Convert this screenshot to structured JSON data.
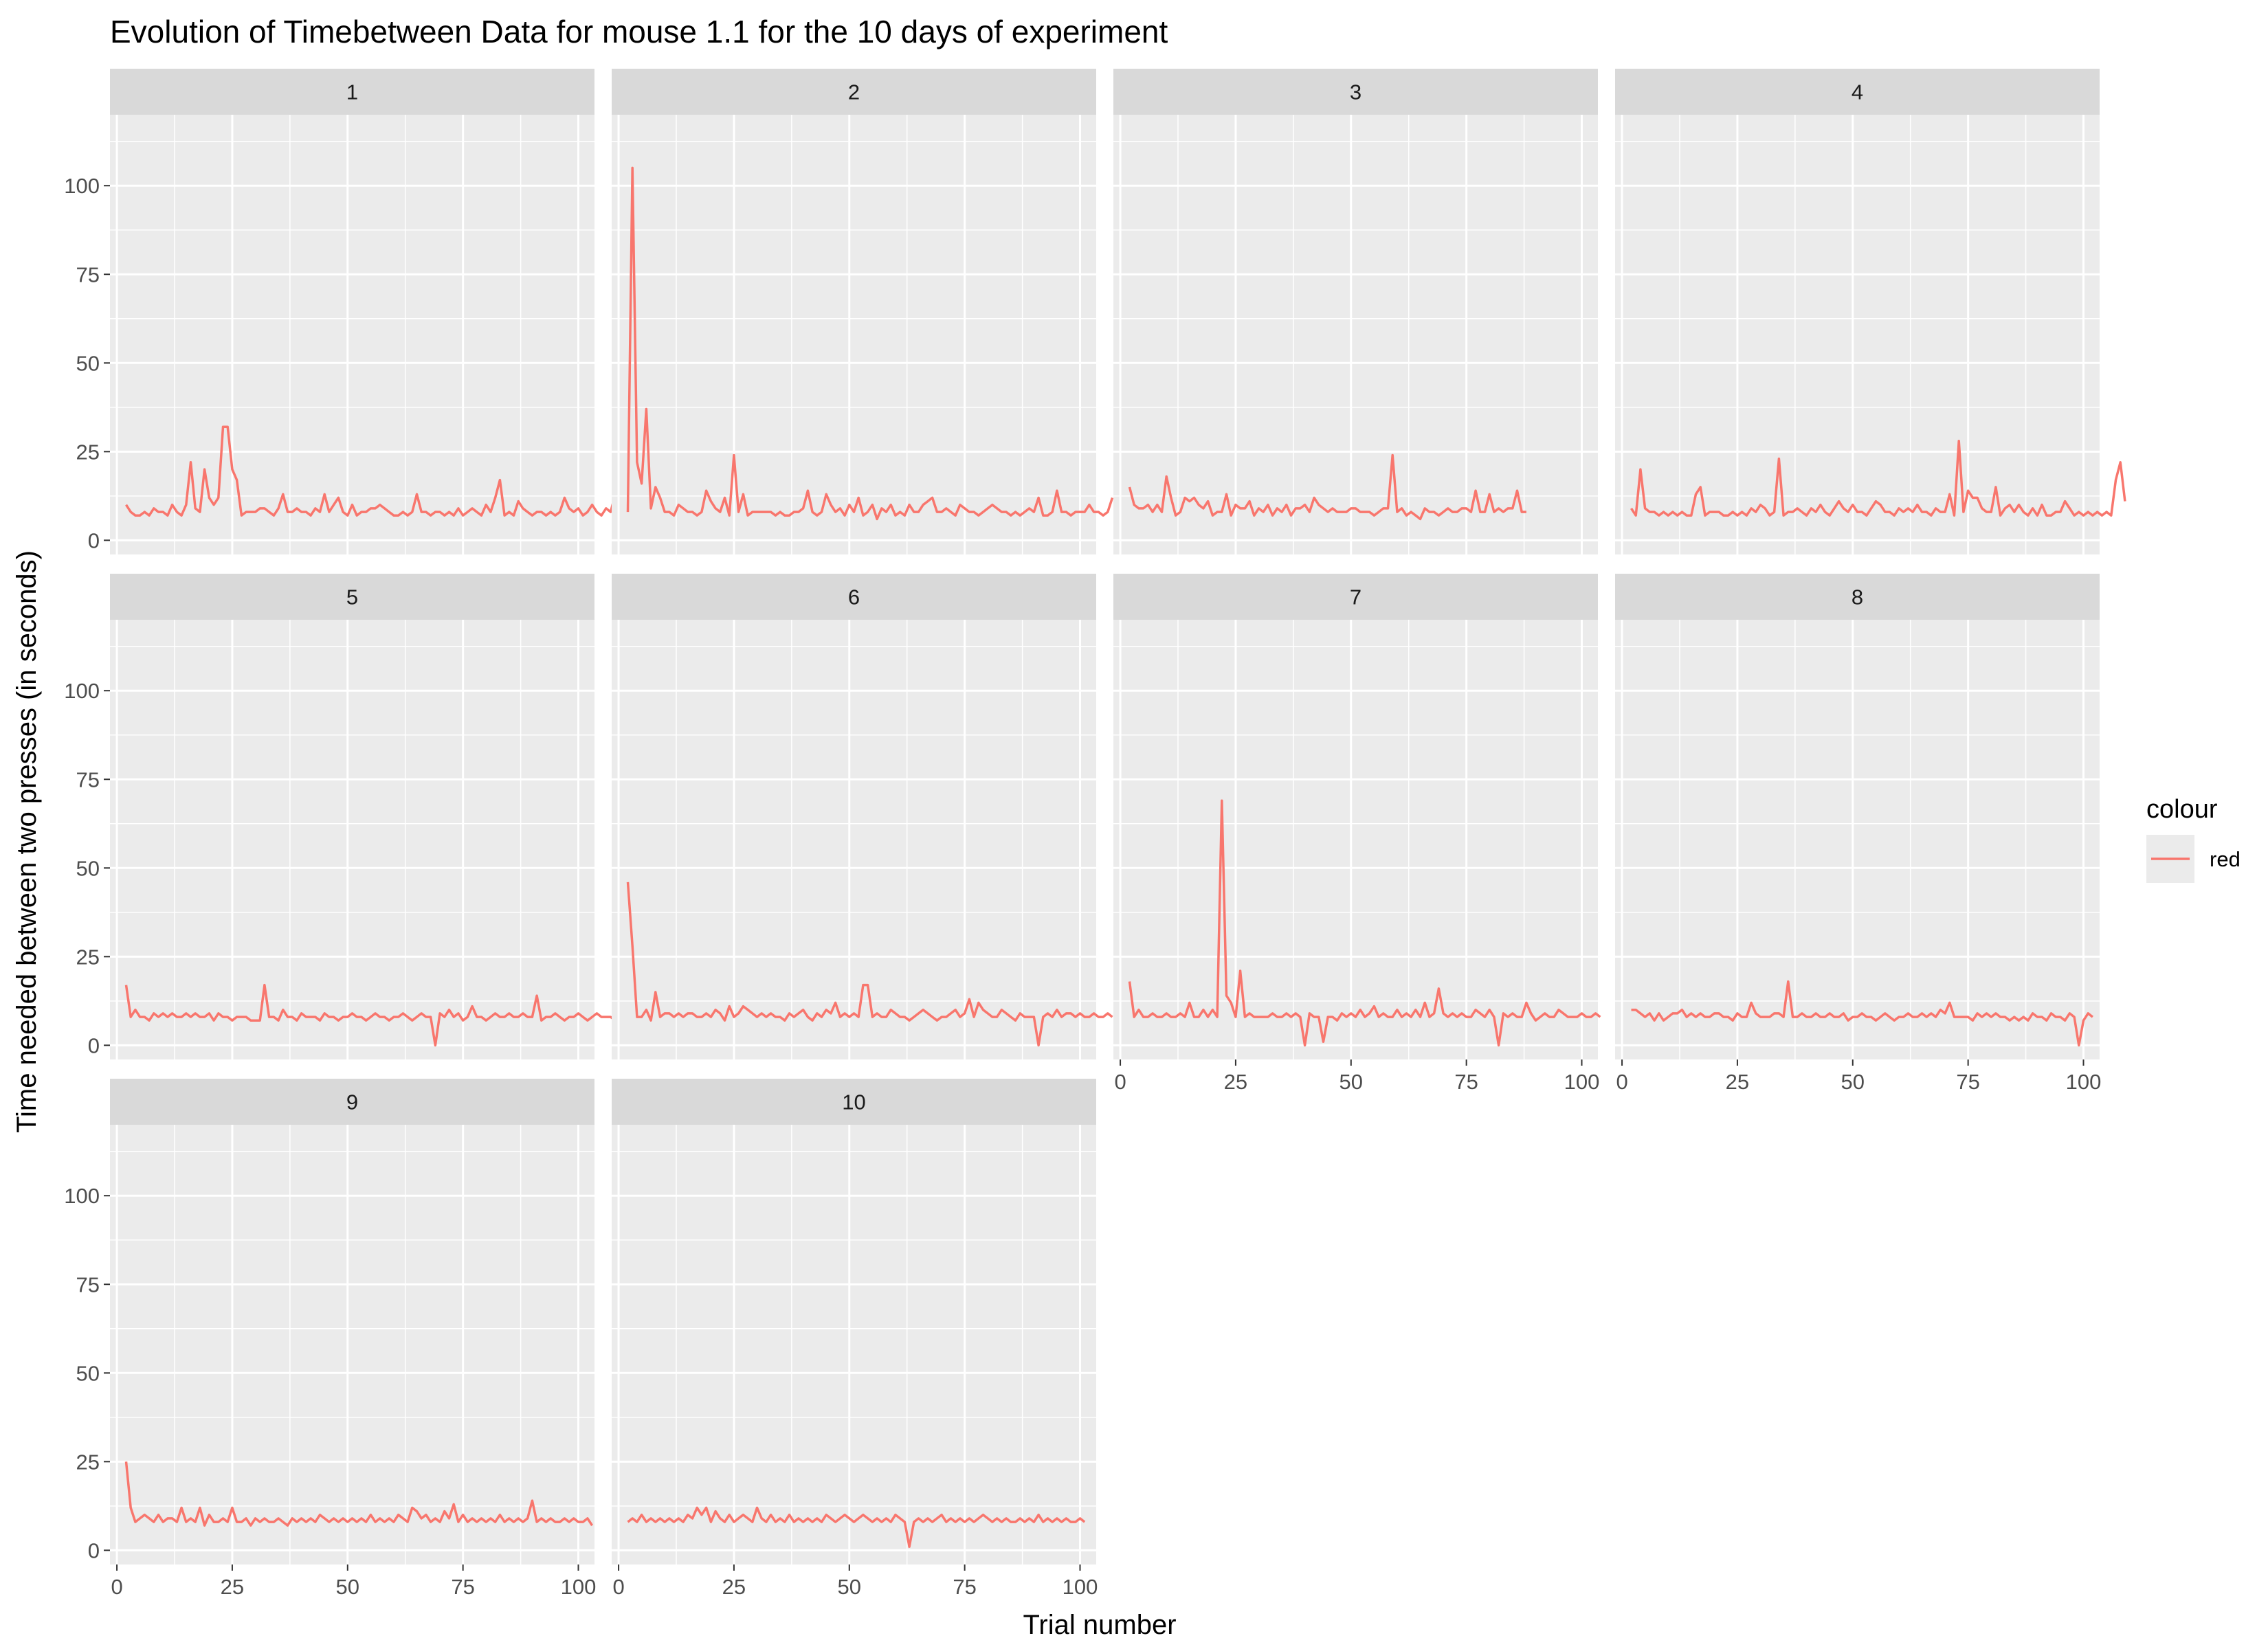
{
  "chart_data": {
    "type": "line",
    "title": "Evolution of Timebetween Data for mouse 1.1 for the 10 days of experiment",
    "xlabel": "Trial number",
    "ylabel": "Time needed between two presses (in seconds)",
    "xlim": [
      -1.5,
      103.5
    ],
    "ylim": [
      -4,
      120
    ],
    "x_ticks": [
      0,
      25,
      50,
      75,
      100
    ],
    "y_ticks": [
      0,
      25,
      50,
      75,
      100
    ],
    "grid": true,
    "legend": {
      "title": "colour",
      "position": "right",
      "entries": [
        {
          "label": "red",
          "color": "#F8766D"
        }
      ]
    },
    "facets": [
      {
        "label": "1",
        "x_start": 2,
        "values": [
          10,
          8,
          7,
          7,
          8,
          7,
          9,
          8,
          8,
          7,
          10,
          8,
          7,
          10,
          22,
          9,
          8,
          20,
          12,
          10,
          12,
          32,
          32,
          20,
          17,
          7,
          8,
          8,
          8,
          9,
          9,
          8,
          7,
          9,
          13,
          8,
          8,
          9,
          8,
          8,
          7,
          9,
          8,
          13,
          8,
          10,
          12,
          8,
          7,
          10,
          7,
          8,
          8,
          9,
          9,
          10,
          9,
          8,
          7,
          7,
          8,
          7,
          8,
          13,
          8,
          8,
          7,
          8,
          8,
          7,
          8,
          7,
          9,
          7,
          8,
          9,
          8,
          7,
          10,
          8,
          12,
          17,
          7,
          8,
          7,
          11,
          9,
          8,
          7,
          8,
          8,
          7,
          8,
          7,
          8,
          12,
          9,
          8,
          9,
          7,
          8,
          10,
          8,
          7,
          9,
          8,
          13,
          8,
          7
        ]
      },
      {
        "label": "2",
        "x_start": 2,
        "values": [
          8,
          105,
          22,
          16,
          37,
          9,
          15,
          12,
          8,
          8,
          7,
          10,
          9,
          8,
          8,
          7,
          8,
          14,
          11,
          9,
          8,
          12,
          7,
          24,
          8,
          13,
          7,
          8,
          8,
          8,
          8,
          8,
          7,
          8,
          7,
          7,
          8,
          8,
          9,
          14,
          8,
          7,
          8,
          13,
          10,
          8,
          9,
          7,
          10,
          8,
          12,
          7,
          8,
          10,
          6,
          9,
          8,
          10,
          7,
          8,
          7,
          10,
          8,
          8,
          10,
          11,
          12,
          8,
          8,
          9,
          8,
          7,
          10,
          9,
          8,
          8,
          7,
          8,
          9,
          10,
          9,
          8,
          8,
          7,
          8,
          7,
          8,
          9,
          8,
          12,
          7,
          7,
          8,
          14,
          8,
          8,
          7,
          8,
          8,
          8,
          10,
          8,
          8,
          7,
          8,
          12
        ]
      },
      {
        "label": "3",
        "x_start": 2,
        "values": [
          15,
          10,
          9,
          9,
          10,
          8,
          10,
          8,
          18,
          12,
          7,
          8,
          12,
          11,
          12,
          10,
          9,
          11,
          7,
          8,
          8,
          13,
          7,
          10,
          9,
          9,
          11,
          7,
          9,
          8,
          10,
          7,
          9,
          8,
          10,
          7,
          9,
          9,
          10,
          8,
          12,
          10,
          9,
          8,
          9,
          8,
          8,
          8,
          9,
          9,
          8,
          8,
          8,
          7,
          8,
          9,
          9,
          24,
          8,
          9,
          7,
          8,
          7,
          6,
          9,
          8,
          8,
          7,
          8,
          9,
          8,
          8,
          9,
          9,
          8,
          14,
          8,
          8,
          13,
          8,
          9,
          8,
          9,
          9,
          14,
          8,
          8
        ]
      },
      {
        "label": "4",
        "x_start": 2,
        "values": [
          9,
          7,
          20,
          9,
          8,
          8,
          7,
          8,
          7,
          8,
          7,
          8,
          7,
          7,
          13,
          15,
          7,
          8,
          8,
          8,
          7,
          7,
          8,
          7,
          8,
          7,
          9,
          8,
          10,
          9,
          7,
          8,
          23,
          7,
          8,
          8,
          9,
          8,
          7,
          9,
          8,
          10,
          8,
          7,
          9,
          11,
          9,
          8,
          10,
          8,
          8,
          7,
          9,
          11,
          10,
          8,
          8,
          7,
          9,
          8,
          9,
          8,
          10,
          8,
          8,
          7,
          9,
          8,
          8,
          13,
          7,
          28,
          8,
          14,
          12,
          12,
          9,
          8,
          8,
          15,
          7,
          9,
          10,
          8,
          10,
          8,
          7,
          9,
          7,
          10,
          7,
          7,
          8,
          8,
          11,
          9,
          7,
          8,
          7,
          8,
          7,
          8,
          7,
          8,
          7,
          17,
          22,
          11
        ]
      },
      {
        "label": "5",
        "x_start": 2,
        "values": [
          17,
          8,
          10,
          8,
          8,
          7,
          9,
          8,
          9,
          8,
          9,
          8,
          8,
          9,
          8,
          9,
          8,
          8,
          9,
          7,
          9,
          8,
          8,
          7,
          8,
          8,
          8,
          7,
          7,
          7,
          17,
          8,
          8,
          7,
          10,
          8,
          8,
          7,
          9,
          8,
          8,
          8,
          7,
          9,
          8,
          8,
          7,
          8,
          8,
          9,
          8,
          8,
          7,
          8,
          9,
          8,
          8,
          7,
          8,
          8,
          9,
          8,
          7,
          8,
          9,
          8,
          8,
          0,
          9,
          8,
          10,
          8,
          9,
          7,
          8,
          11,
          8,
          8,
          7,
          8,
          9,
          8,
          8,
          9,
          8,
          8,
          9,
          8,
          8,
          14,
          7,
          8,
          8,
          9,
          8,
          7,
          8,
          8,
          9,
          8,
          7,
          8,
          9,
          8,
          8,
          8,
          7,
          9,
          8
        ]
      },
      {
        "label": "6",
        "x_start": 2,
        "values": [
          46,
          28,
          8,
          8,
          10,
          7,
          15,
          8,
          9,
          9,
          8,
          9,
          8,
          9,
          9,
          8,
          8,
          9,
          8,
          10,
          9,
          7,
          11,
          8,
          9,
          11,
          10,
          9,
          8,
          9,
          8,
          9,
          8,
          8,
          7,
          9,
          8,
          9,
          10,
          8,
          7,
          9,
          8,
          10,
          9,
          12,
          8,
          9,
          8,
          9,
          8,
          17,
          17,
          8,
          9,
          8,
          8,
          10,
          9,
          8,
          8,
          7,
          8,
          9,
          10,
          9,
          8,
          7,
          8,
          8,
          9,
          10,
          8,
          9,
          13,
          8,
          12,
          10,
          9,
          8,
          8,
          10,
          9,
          8,
          7,
          9,
          8,
          8,
          8,
          0,
          8,
          9,
          8,
          10,
          8,
          9,
          9,
          8,
          9,
          8,
          8,
          9,
          8,
          8,
          9,
          8
        ]
      },
      {
        "label": "7",
        "x_start": 2,
        "values": [
          18,
          8,
          10,
          8,
          8,
          9,
          8,
          8,
          9,
          8,
          8,
          9,
          8,
          12,
          8,
          8,
          10,
          8,
          10,
          8,
          69,
          14,
          12,
          8,
          21,
          8,
          9,
          8,
          8,
          8,
          8,
          9,
          8,
          8,
          9,
          8,
          9,
          8,
          0,
          9,
          8,
          8,
          1,
          8,
          8,
          7,
          9,
          8,
          9,
          8,
          10,
          8,
          9,
          11,
          8,
          9,
          8,
          8,
          10,
          8,
          9,
          8,
          10,
          8,
          12,
          8,
          9,
          16,
          9,
          8,
          9,
          8,
          9,
          8,
          8,
          10,
          9,
          8,
          10,
          8,
          0,
          9,
          8,
          9,
          8,
          8,
          12,
          9,
          7,
          8,
          9,
          8,
          8,
          10,
          9,
          8,
          8,
          8,
          9,
          8,
          8,
          9,
          8
        ]
      },
      {
        "label": "8",
        "x_start": 2,
        "values": [
          10,
          10,
          9,
          8,
          9,
          7,
          9,
          7,
          8,
          9,
          9,
          10,
          8,
          9,
          8,
          9,
          8,
          8,
          9,
          9,
          8,
          8,
          7,
          9,
          8,
          8,
          12,
          9,
          8,
          8,
          8,
          9,
          9,
          8,
          18,
          8,
          8,
          9,
          8,
          8,
          9,
          8,
          8,
          9,
          8,
          8,
          9,
          7,
          8,
          8,
          9,
          8,
          8,
          7,
          8,
          9,
          8,
          7,
          8,
          8,
          9,
          8,
          8,
          9,
          8,
          9,
          8,
          10,
          9,
          12,
          8,
          8,
          8,
          8,
          7,
          9,
          8,
          9,
          8,
          9,
          8,
          8,
          7,
          8,
          7,
          8,
          7,
          9,
          8,
          8,
          7,
          9,
          8,
          8,
          7,
          9,
          8,
          0,
          7,
          9,
          8
        ]
      },
      {
        "label": "9",
        "x_start": 2,
        "values": [
          25,
          12,
          8,
          9,
          10,
          9,
          8,
          10,
          8,
          9,
          9,
          8,
          12,
          8,
          9,
          8,
          12,
          7,
          10,
          8,
          8,
          9,
          8,
          12,
          8,
          8,
          9,
          7,
          9,
          8,
          9,
          8,
          8,
          9,
          8,
          7,
          9,
          8,
          9,
          8,
          9,
          8,
          10,
          9,
          8,
          9,
          8,
          9,
          8,
          9,
          8,
          9,
          8,
          10,
          8,
          9,
          8,
          9,
          8,
          10,
          9,
          8,
          12,
          11,
          9,
          10,
          8,
          9,
          8,
          11,
          9,
          13,
          8,
          10,
          8,
          9,
          8,
          9,
          8,
          9,
          8,
          10,
          8,
          9,
          8,
          9,
          8,
          9,
          14,
          8,
          9,
          8,
          9,
          8,
          8,
          9,
          8,
          9,
          8,
          8,
          9,
          7
        ]
      },
      {
        "label": "10",
        "x_start": 2,
        "values": [
          8,
          9,
          8,
          10,
          8,
          9,
          8,
          9,
          8,
          9,
          8,
          9,
          8,
          10,
          9,
          12,
          10,
          12,
          8,
          11,
          9,
          8,
          10,
          8,
          9,
          10,
          9,
          8,
          12,
          9,
          8,
          10,
          8,
          9,
          8,
          10,
          8,
          9,
          8,
          9,
          8,
          9,
          8,
          10,
          9,
          8,
          9,
          10,
          9,
          8,
          9,
          10,
          9,
          8,
          9,
          8,
          9,
          8,
          10,
          9,
          8,
          1,
          8,
          9,
          8,
          9,
          8,
          9,
          10,
          8,
          9,
          8,
          9,
          8,
          9,
          8,
          9,
          10,
          9,
          8,
          9,
          8,
          9,
          8,
          8,
          9,
          8,
          9,
          8,
          10,
          8,
          9,
          8,
          9,
          8,
          9,
          8,
          8,
          9,
          8
        ]
      }
    ]
  }
}
